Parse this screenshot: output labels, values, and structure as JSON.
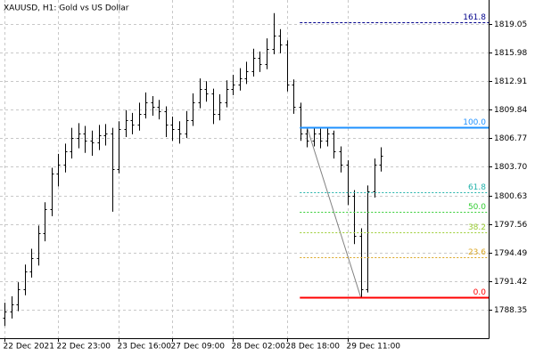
{
  "chart_data": {
    "type": "ohlc",
    "title": "XAUUSD, H1:  Gold vs US Dollar",
    "color": "#000000",
    "grid": true,
    "ylim": [
      1785.29,
      1821.63
    ],
    "yticks": [
      1819.05,
      1815.98,
      1812.91,
      1809.84,
      1806.77,
      {
        "value": 1803.7,
        "label": "1803.70"
      },
      1800.63,
      1797.56,
      1794.49,
      1791.42,
      1788.35
    ],
    "xlim": [
      -0.66,
      72.02
    ],
    "xticks": [
      {
        "value": 0,
        "label": "22 Dec 2021"
      },
      {
        "value": 8,
        "label": "22 Dec 23:00"
      },
      {
        "value": 17,
        "label": "23 Dec 16:00"
      },
      {
        "value": 25,
        "label": "27 Dec 09:00"
      },
      {
        "value": 34,
        "label": "28 Dec 02:00"
      },
      {
        "value": 42,
        "label": "28 Dec 18:00"
      },
      {
        "value": 51,
        "label": "29 Dec 11:00"
      }
    ],
    "open": [
      1787.5,
      1788.16,
      1788.93,
      1790.55,
      1792.47,
      1793.9,
      1796.58,
      1799.17,
      1802.99,
      1803.95,
      1805.39,
      1806.82,
      1807.3,
      1806.53,
      1806.34,
      1807.11,
      1807.3,
      1803.47,
      1807.78,
      1808.73,
      1808.26,
      1809.4,
      1810.65,
      1810.17,
      1809.69,
      1808.26,
      1807.78,
      1807.3,
      1808.73,
      1810.65,
      1812.08,
      1811.6,
      1809.4,
      1810.65,
      1812.08,
      1812.56,
      1813.23,
      1813.99,
      1815.43,
      1814.76,
      1816.39,
      1817.83,
      1816.87,
      1812.56,
      1810.17,
      1807.3,
      1806.53,
      1807.3,
      1806.53,
      1807.3,
      1805.39,
      1803.95,
      1800.6,
      1796.29,
      1790.55,
      1801.08,
      1803.95
    ],
    "high": [
      1789.1,
      1789.8,
      1791.3,
      1793.2,
      1794.9,
      1797.4,
      1799.9,
      1803.6,
      1805.1,
      1806.2,
      1807.9,
      1808.4,
      1808.1,
      1807.6,
      1808.2,
      1808.3,
      1807.9,
      1808.6,
      1809.8,
      1809.5,
      1810.6,
      1811.7,
      1811.3,
      1810.9,
      1810.2,
      1809.1,
      1808.6,
      1809.7,
      1811.6,
      1813.2,
      1812.9,
      1812.1,
      1811.5,
      1813.0,
      1813.6,
      1814.3,
      1815.0,
      1816.4,
      1816.1,
      1817.5,
      1820.22,
      1818.5,
      1817.3,
      1813.1,
      1810.6,
      1807.97,
      1807.9,
      1807.8,
      1807.9,
      1807.6,
      1805.9,
      1804.4,
      1801.2,
      1797.1,
      1801.7,
      1804.6,
      1805.8
    ],
    "low": [
      1786.6,
      1787.4,
      1788.2,
      1789.9,
      1791.8,
      1793.1,
      1795.7,
      1798.4,
      1801.6,
      1803.1,
      1804.6,
      1805.7,
      1805.2,
      1804.9,
      1805.5,
      1806.0,
      1798.88,
      1803.0,
      1806.9,
      1807.2,
      1807.6,
      1808.9,
      1809.2,
      1808.8,
      1806.9,
      1806.5,
      1806.2,
      1806.8,
      1808.1,
      1810.0,
      1810.7,
      1808.3,
      1808.7,
      1810.1,
      1811.4,
      1811.9,
      1812.6,
      1813.4,
      1813.9,
      1814.2,
      1815.8,
      1815.9,
      1811.8,
      1809.4,
      1806.5,
      1805.8,
      1805.9,
      1805.7,
      1805.9,
      1804.6,
      1803.1,
      1799.6,
      1795.4,
      1789.69,
      1790.2,
      1800.4,
      1803.2
    ],
    "close": [
      1788.16,
      1788.93,
      1790.55,
      1792.47,
      1793.9,
      1796.58,
      1799.17,
      1802.99,
      1803.95,
      1805.39,
      1806.82,
      1807.3,
      1806.53,
      1806.34,
      1807.11,
      1807.3,
      1803.47,
      1807.78,
      1808.73,
      1808.26,
      1809.4,
      1810.65,
      1810.17,
      1809.69,
      1808.26,
      1807.78,
      1807.3,
      1808.73,
      1810.65,
      1812.08,
      1811.6,
      1809.4,
      1810.65,
      1812.08,
      1812.56,
      1813.23,
      1813.99,
      1815.43,
      1814.76,
      1816.39,
      1817.83,
      1816.87,
      1812.56,
      1810.17,
      1807.3,
      1806.53,
      1807.3,
      1806.53,
      1807.3,
      1805.39,
      1803.95,
      1800.6,
      1796.29,
      1790.55,
      1801.08,
      1803.95,
      1804.91
    ],
    "fibonacci": {
      "x": [
        45,
        53
      ],
      "trend_color": "#808080",
      "levels": [
        {
          "label": "161.8",
          "price": 1819.27,
          "color": "#00008b",
          "style": "dashed"
        },
        {
          "label": "100.0",
          "price": 1807.97,
          "color": "#1e90ff",
          "style": "solid"
        },
        {
          "label": "61.8",
          "price": 1800.99,
          "color": "#20b2aa",
          "style": "dotted"
        },
        {
          "label": "50.0",
          "price": 1798.83,
          "color": "#32cd32",
          "style": "dotted"
        },
        {
          "label": "38.2",
          "price": 1796.67,
          "color": "#9acd32",
          "style": "dotted"
        },
        {
          "label": "23.6",
          "price": 1794.0,
          "color": "#daa520",
          "style": "dotted"
        },
        {
          "label": "0.0",
          "price": 1789.69,
          "color": "#ff0000",
          "style": "solid"
        }
      ]
    }
  }
}
